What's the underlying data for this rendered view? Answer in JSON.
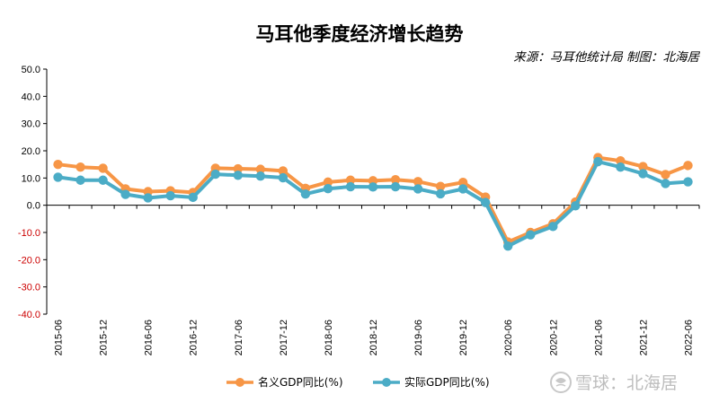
{
  "chart_data": {
    "type": "line",
    "title": "马耳他季度经济增长趋势",
    "source": "来源：马耳他统计局 制图：北海居",
    "ylim": [
      -40,
      50
    ],
    "yticks": [
      50,
      40,
      30,
      20,
      10,
      0,
      -10,
      -20,
      -30,
      -40
    ],
    "ytick_labels": [
      "50.0",
      "40.0",
      "30.0",
      "20.0",
      "10.0",
      "0.0",
      "-10.0",
      "-20.0",
      "-30.0",
      "-40.0"
    ],
    "negative_tick_color": "#cc0000",
    "x": [
      "2015-06",
      "2015-09",
      "2015-12",
      "2016-03",
      "2016-06",
      "2016-09",
      "2016-12",
      "2017-03",
      "2017-06",
      "2017-09",
      "2017-12",
      "2018-03",
      "2018-06",
      "2018-09",
      "2018-12",
      "2019-03",
      "2019-06",
      "2019-09",
      "2019-12",
      "2020-03",
      "2020-06",
      "2020-09",
      "2020-12",
      "2021-03",
      "2021-06",
      "2021-09",
      "2021-12",
      "2022-03",
      "2022-06"
    ],
    "x_tick_labels": [
      "2015-06",
      "2015-12",
      "2016-06",
      "2016-12",
      "2017-06",
      "2017-12",
      "2018-06",
      "2018-12",
      "2019-06",
      "2019-12",
      "2020-06",
      "2020-12",
      "2021-06",
      "2021-12",
      "2022-06"
    ],
    "series": [
      {
        "name": "名义GDP同比(%)",
        "color": "#f79646",
        "values": [
          15.0,
          14.0,
          13.6,
          6.0,
          5.0,
          5.3,
          4.7,
          13.6,
          13.4,
          13.2,
          12.6,
          6.2,
          8.5,
          9.2,
          9.0,
          9.4,
          8.7,
          6.9,
          8.4,
          3.0,
          -13.5,
          -10.0,
          -6.8,
          1.2,
          17.5,
          16.3,
          14.2,
          11.3,
          14.6
        ]
      },
      {
        "name": "实际GDP同比(%)",
        "color": "#4bacc6",
        "values": [
          10.3,
          9.2,
          9.2,
          4.0,
          2.7,
          3.5,
          2.9,
          11.4,
          11.0,
          10.7,
          10.1,
          4.1,
          6.1,
          6.8,
          6.7,
          6.8,
          6.0,
          4.2,
          6.0,
          1.0,
          -15.0,
          -10.9,
          -7.8,
          -0.2,
          16.0,
          14.0,
          11.6,
          8.0,
          8.6
        ]
      }
    ],
    "legend_position": "bottom",
    "grid": false
  },
  "watermark": {
    "text": "雪球：北海居",
    "icon": "snowball-logo-icon"
  }
}
